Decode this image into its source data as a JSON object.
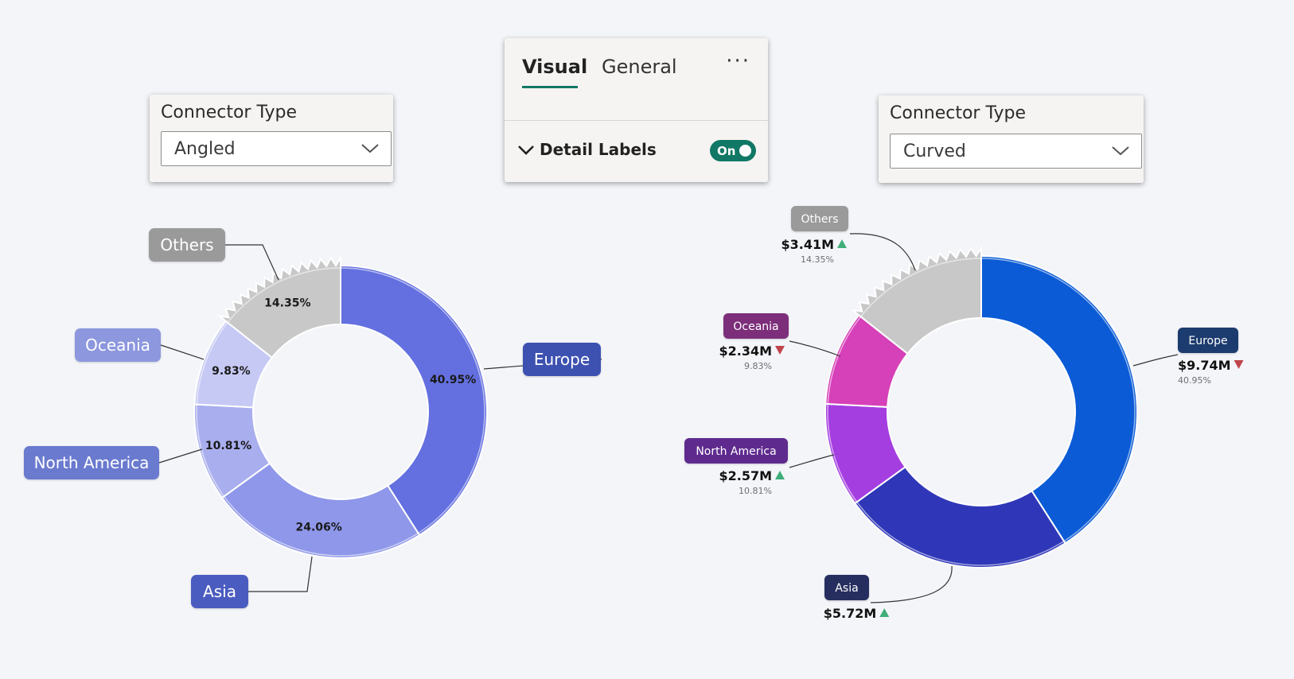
{
  "left_panel": {
    "title": "Connector Type",
    "value": "Angled"
  },
  "right_panel": {
    "title": "Connector Type",
    "value": "Curved"
  },
  "format_panel": {
    "tabs": [
      {
        "label": "Visual"
      },
      {
        "label": "General"
      }
    ],
    "more": "···",
    "section_label": "Detail Labels",
    "toggle": "On"
  },
  "chart_data": [
    {
      "type": "pie",
      "variant": "donut",
      "connector": "angled",
      "categories": [
        "Europe",
        "Asia",
        "North America",
        "Oceania",
        "Others"
      ],
      "values": [
        40.95,
        24.06,
        10.81,
        9.83,
        14.35
      ],
      "labels": [
        "40.95%",
        "24.06%",
        "10.81%",
        "9.83%",
        "14.35%"
      ],
      "colors": [
        "#6470e0",
        "#8e97e9",
        "#a9aeee",
        "#c6c9f4",
        "#c8c8c8"
      ],
      "label_colors": [
        "#3e51b0",
        "#4b5cc0",
        "#6a7acf",
        "#8c97dd",
        "#9a9a9a"
      ]
    },
    {
      "type": "pie",
      "variant": "donut",
      "connector": "curved",
      "categories": [
        "Europe",
        "Asia",
        "North America",
        "Oceania",
        "Others"
      ],
      "values": [
        40.95,
        24.06,
        10.81,
        9.83,
        14.35
      ],
      "amounts": [
        "$9.74M",
        "$5.72M",
        "$2.57M",
        "$2.34M",
        "$3.41M"
      ],
      "percent_labels": [
        "40.95%",
        "",
        "10.81%",
        "9.83%",
        "14.35%"
      ],
      "trend": [
        "down",
        "up",
        "up",
        "down",
        "up"
      ],
      "colors": [
        "#0b5bd6",
        "#2f37b8",
        "#a43ee0",
        "#d640b8",
        "#c8c8c8"
      ],
      "label_colors": [
        "#1a3a6e",
        "#272e5e",
        "#5e2a8e",
        "#7b2f7a",
        "#9a9a9a"
      ],
      "trend_colors": {
        "up": "#3fae7a",
        "down": "#c0454b"
      }
    }
  ]
}
